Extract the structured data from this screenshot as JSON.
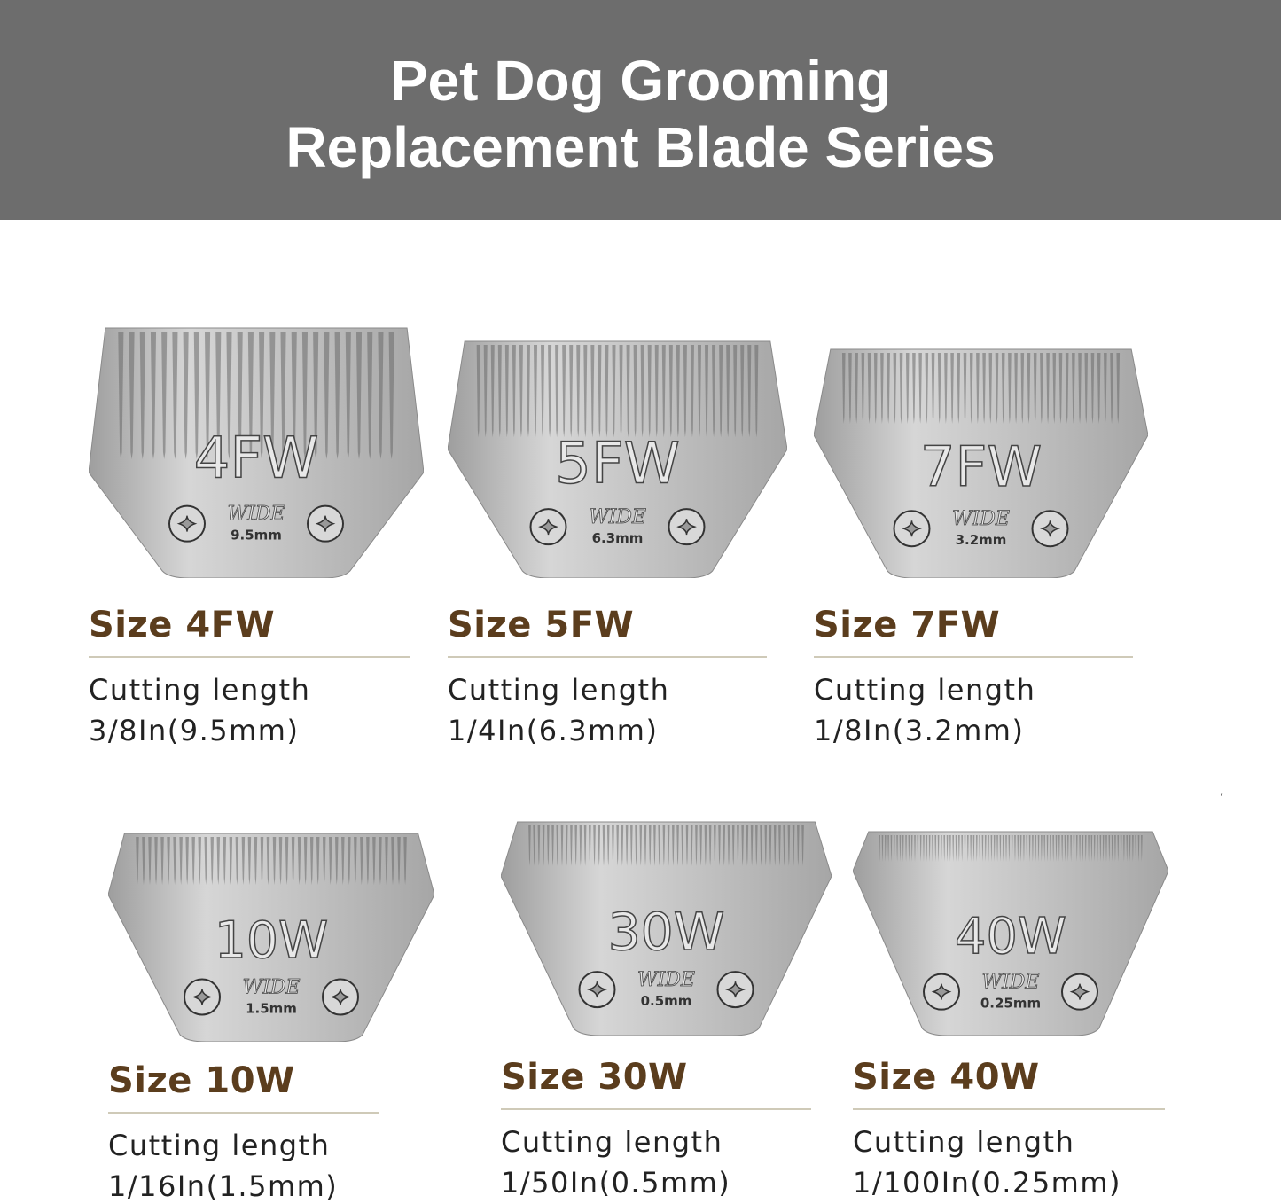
{
  "header": {
    "title_line1": "Pet Dog Grooming",
    "title_line2": "Replacement Blade Series",
    "background_color": "#6d6d6d"
  },
  "colors": {
    "size_label": "#5b3d1d",
    "text": "#222222",
    "divider": "#cfcab8",
    "blade_steel": "#b9b9b9"
  },
  "blades": [
    {
      "code": "4FW",
      "stamp": "WIDE",
      "mm_stamp": "9.5mm",
      "size_label": "Size 4FW",
      "cutting_label": "Cutting length",
      "cutting_value": "3/8In(9.5mm)"
    },
    {
      "code": "5FW",
      "stamp": "WIDE",
      "mm_stamp": "6.3mm",
      "size_label": "Size 5FW",
      "cutting_label": "Cutting length",
      "cutting_value": "1/4In(6.3mm)"
    },
    {
      "code": "7FW",
      "stamp": "WIDE",
      "mm_stamp": "3.2mm",
      "size_label": "Size 7FW",
      "cutting_label": "Cutting length",
      "cutting_value": "1/8In(3.2mm)"
    },
    {
      "code": "10W",
      "stamp": "WIDE",
      "mm_stamp": "1.5mm",
      "size_label": "Size 10W",
      "cutting_label": "Cutting length",
      "cutting_value": "1/16In(1.5mm)"
    },
    {
      "code": "30W",
      "stamp": "WIDE",
      "mm_stamp": "0.5mm",
      "size_label": "Size 30W",
      "cutting_label": "Cutting length",
      "cutting_value": "1/50In(0.5mm)"
    },
    {
      "code": "40W",
      "stamp": "WIDE",
      "mm_stamp": "0.25mm",
      "size_label": "Size 40W",
      "cutting_label": "Cutting length",
      "cutting_value": "1/100In(0.25mm)"
    }
  ]
}
